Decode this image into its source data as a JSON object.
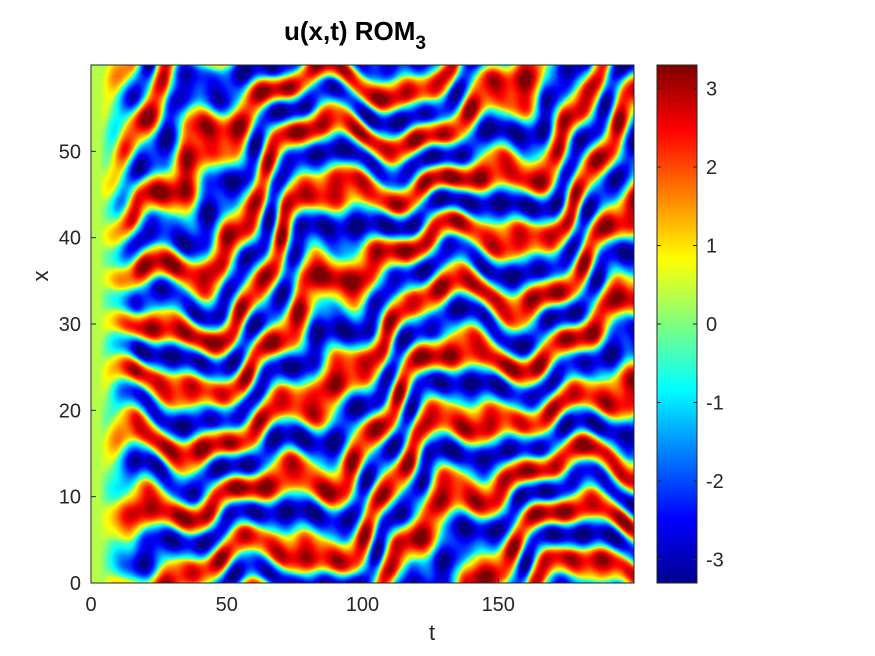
{
  "chart_data": {
    "type": "heatmap",
    "title": "u(x,t) ROM",
    "title_subscript": "3",
    "xlabel": "t",
    "ylabel": "x",
    "xlim": [
      0,
      200
    ],
    "ylim": [
      0,
      60
    ],
    "xticks": [
      0,
      50,
      100,
      150
    ],
    "xtick_labels": [
      "0",
      "50",
      "100",
      "150"
    ],
    "yticks": [
      0,
      10,
      20,
      30,
      40,
      50
    ],
    "ytick_labels": [
      "0",
      "10",
      "20",
      "30",
      "40",
      "50"
    ],
    "colormap": "jet",
    "clim": [
      -3.3,
      3.3
    ],
    "colorbar_ticks": [
      3,
      2,
      1,
      0,
      -1,
      -2,
      -3
    ],
    "colorbar_tick_labels": [
      "3",
      "2",
      "1",
      "0",
      "-1",
      "-2",
      "-3"
    ],
    "grid": false,
    "legend": "none"
  }
}
